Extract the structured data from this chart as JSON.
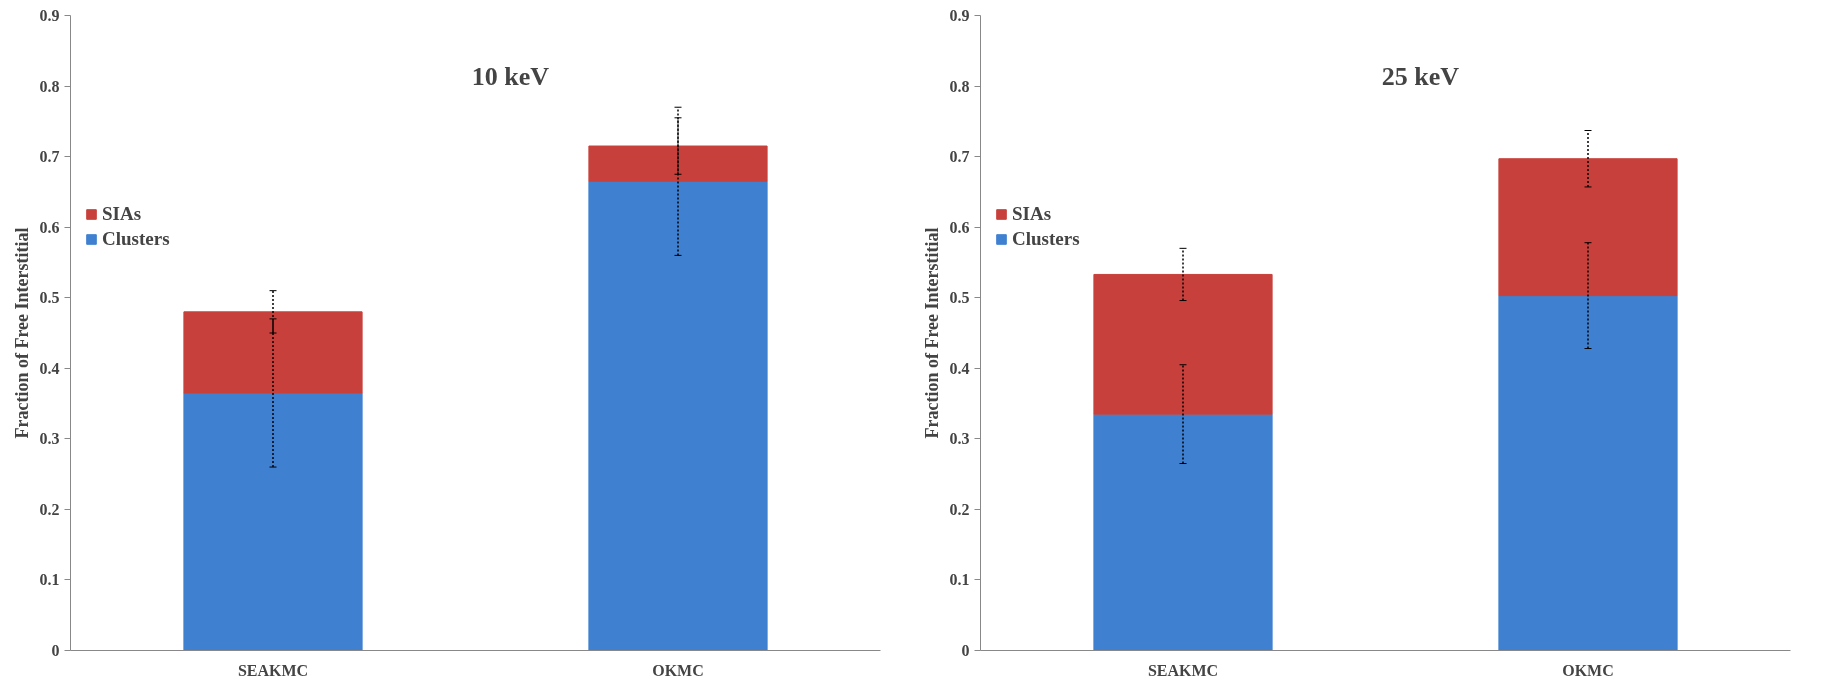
{
  "chart_data": [
    {
      "type": "bar",
      "title": "10 keV",
      "ylabel": "Fraction of Free Interstitial",
      "categories": [
        "SEAKMC",
        "OKMC"
      ],
      "stacked": true,
      "legend": "left",
      "grid": false,
      "ylim": [
        0,
        0.9
      ],
      "yticks": [
        0,
        0.1,
        0.2,
        0.3,
        0.4,
        0.5,
        0.6,
        0.7,
        0.8,
        0.9
      ],
      "series": [
        {
          "name": "Clusters",
          "color": "#3f80d0",
          "values": [
            0.365,
            0.665
          ],
          "errors": [
            0.105,
            0.105
          ]
        },
        {
          "name": "SIAs",
          "color": "#c8403b",
          "values": [
            0.115,
            0.05
          ],
          "errors": [
            0.03,
            0.04
          ]
        }
      ]
    },
    {
      "type": "bar",
      "title": "25 keV",
      "ylabel": "Fraction of Free Interstitial",
      "categories": [
        "SEAKMC",
        "OKMC"
      ],
      "stacked": true,
      "legend": "left",
      "grid": false,
      "ylim": [
        0,
        0.9
      ],
      "yticks": [
        0,
        0.1,
        0.2,
        0.3,
        0.4,
        0.5,
        0.6,
        0.7,
        0.8,
        0.9
      ],
      "series": [
        {
          "name": "Clusters",
          "color": "#3f80d0",
          "values": [
            0.335,
            0.503
          ],
          "errors": [
            0.07,
            0.075
          ]
        },
        {
          "name": "SIAs",
          "color": "#c8403b",
          "values": [
            0.198,
            0.194
          ],
          "errors": [
            0.037,
            0.04
          ]
        }
      ]
    }
  ]
}
